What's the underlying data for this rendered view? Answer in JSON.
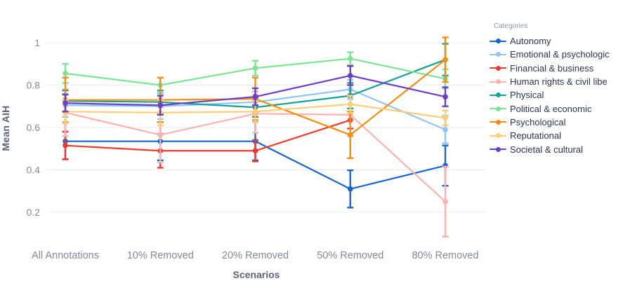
{
  "chart_data": {
    "type": "line",
    "title": "",
    "xlabel": "Scenarios",
    "ylabel": "Mean AIH",
    "categories": [
      "All Annotations",
      "10% Removed",
      "20% Removed",
      "50% Removed",
      "80% Removed"
    ],
    "y_ticks": [
      0.2,
      0.4,
      0.6,
      0.8,
      1
    ],
    "ylim": [
      0.05,
      1.08
    ],
    "grid": "horizontal",
    "legend_title": "Categories",
    "legend_position": "right",
    "error_bars": true,
    "series": [
      {
        "name": "Autonomy",
        "color": "#1766CF",
        "values": [
          0.535,
          0.535,
          0.535,
          0.31,
          0.42
        ],
        "errors": [
          0.085,
          0.09,
          0.09,
          0.088,
          0.095
        ]
      },
      {
        "name": "Emotional & psychologic",
        "color": "#92C5F2",
        "values": [
          0.705,
          0.7,
          0.72,
          0.78,
          0.59
        ],
        "errors": [
          0.055,
          0.06,
          0.05,
          0.045,
          0.065
        ]
      },
      {
        "name": "Financial & business",
        "color": "#EE3A2C",
        "values": [
          0.515,
          0.49,
          0.49,
          0.635,
          null
        ],
        "errors": [
          0.065,
          0.08,
          0.05,
          0.04,
          null
        ]
      },
      {
        "name": "Human rights & civil libe",
        "color": "#FFB2AE",
        "values": [
          0.67,
          0.565,
          0.665,
          0.66,
          0.25
        ],
        "errors": [
          0.11,
          0.13,
          0.09,
          0.1,
          0.165
        ]
      },
      {
        "name": "Physical",
        "color": "#15A294",
        "values": [
          0.725,
          0.72,
          0.695,
          0.75,
          0.92
        ],
        "errors": [
          0.05,
          0.055,
          0.045,
          0.06,
          0.075
        ]
      },
      {
        "name": "Political & economic",
        "color": "#7BE495",
        "values": [
          0.855,
          0.8,
          0.88,
          0.925,
          0.83
        ],
        "errors": [
          0.045,
          0.035,
          0.035,
          0.03,
          0.045
        ]
      },
      {
        "name": "Psychological",
        "color": "#F68D13",
        "values": [
          0.73,
          0.73,
          0.735,
          0.565,
          0.92
        ],
        "errors": [
          0.105,
          0.105,
          0.1,
          0.11,
          0.105
        ]
      },
      {
        "name": "Reputational",
        "color": "#FFCE73",
        "values": [
          0.675,
          0.67,
          0.675,
          0.71,
          0.645
        ],
        "errors": [
          0.055,
          0.06,
          0.05,
          0.04,
          0.035
        ]
      },
      {
        "name": "Societal & cultural",
        "color": "#6B3FC6",
        "values": [
          0.715,
          0.705,
          0.745,
          0.845,
          0.745
        ],
        "errors": [
          0.04,
          0.045,
          0.04,
          0.045,
          0.045
        ]
      }
    ],
    "colors": {
      "grid": "#E9EDF6",
      "tick_text": "#828AA0",
      "axis_title_text": "#5A6378",
      "legend_title_text": "#8E96A8",
      "legend_text": "#2A3552"
    }
  }
}
